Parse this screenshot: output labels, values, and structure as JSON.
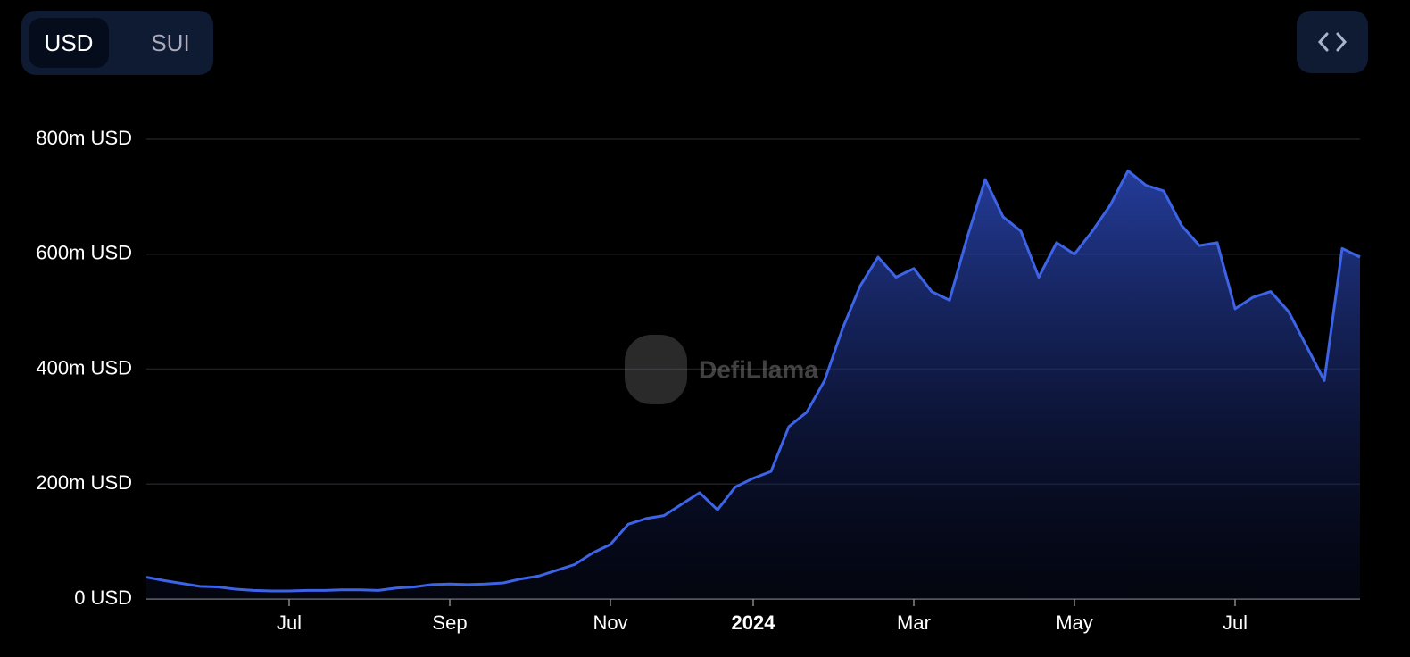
{
  "controls": {
    "toggle": [
      "USD",
      "SUI"
    ]
  },
  "watermark": "DefiLlama",
  "chart_data": {
    "type": "area",
    "categories": [
      null,
      null,
      null,
      null,
      null,
      null,
      null,
      null,
      "Jul",
      null,
      null,
      null,
      null,
      null,
      null,
      null,
      null,
      "Sep",
      null,
      null,
      null,
      null,
      null,
      null,
      null,
      null,
      "Nov",
      null,
      null,
      null,
      null,
      null,
      null,
      null,
      "2024",
      null,
      null,
      null,
      null,
      null,
      null,
      null,
      null,
      "Mar",
      null,
      null,
      null,
      null,
      null,
      null,
      null,
      null,
      "May",
      null,
      null,
      null,
      null,
      null,
      null,
      null,
      null,
      "Jul",
      null,
      null,
      null,
      null,
      null,
      null,
      null
    ],
    "series": [
      {
        "name": "USD",
        "color": "#3d63e6",
        "values": [
          38,
          32,
          27,
          22,
          21,
          17,
          15,
          14,
          14,
          15,
          15,
          16,
          16,
          15,
          19,
          21,
          25,
          26,
          25,
          26,
          28,
          35,
          40,
          50,
          60,
          80,
          95,
          130,
          140,
          145,
          165,
          185,
          155,
          195,
          210,
          222,
          300,
          325,
          380,
          470,
          545,
          595,
          560,
          575,
          535,
          520,
          630,
          730,
          665,
          640,
          560,
          620,
          600,
          640,
          685,
          745,
          720,
          710,
          650,
          615,
          620,
          505,
          525,
          535,
          500,
          440,
          380,
          610,
          595
        ]
      }
    ],
    "ylim": [
      0,
      800
    ],
    "yticks": [
      {
        "value": 0,
        "label": "0 USD"
      },
      {
        "value": 200,
        "label": "200m USD"
      },
      {
        "value": 400,
        "label": "400m USD"
      },
      {
        "value": 600,
        "label": "600m USD"
      },
      {
        "value": 800,
        "label": "800m USD"
      }
    ],
    "grid": true
  }
}
